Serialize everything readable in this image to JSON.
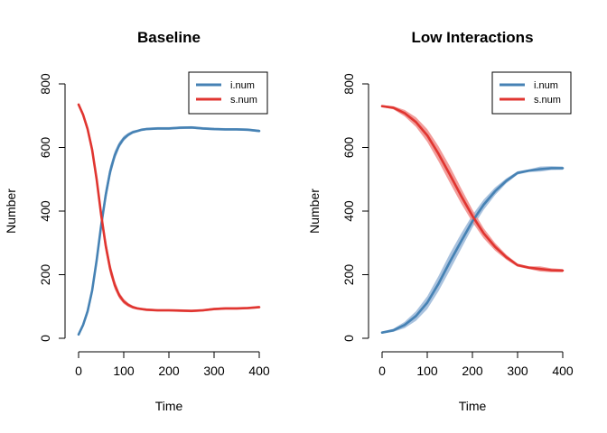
{
  "chart_data": [
    {
      "type": "line",
      "title": "Baseline",
      "xlabel": "Time",
      "ylabel": "Number",
      "xlim": [
        0,
        400
      ],
      "ylim": [
        0,
        800
      ],
      "xticks": [
        "0",
        "100",
        "200",
        "300",
        "400"
      ],
      "yticks": [
        "0",
        "200",
        "400",
        "600",
        "800"
      ],
      "grid": false,
      "legend_position": "top-right",
      "legend": [
        "i.num",
        "s.num"
      ],
      "series": [
        {
          "name": "i.num",
          "color": "#4682b4",
          "band_color": "#9ab7d8",
          "x": [
            0,
            10,
            20,
            30,
            40,
            50,
            60,
            70,
            80,
            90,
            100,
            110,
            120,
            130,
            140,
            150,
            175,
            200,
            225,
            250,
            275,
            300,
            325,
            350,
            375,
            400
          ],
          "y": [
            12,
            42,
            85,
            150,
            245,
            355,
            450,
            525,
            575,
            608,
            628,
            640,
            648,
            652,
            656,
            658,
            660,
            660,
            662,
            663,
            660,
            658,
            657,
            657,
            656,
            652
          ],
          "band": [
            4,
            8,
            12,
            16,
            20,
            22,
            22,
            18,
            14,
            10,
            8,
            6,
            5,
            4,
            4,
            4,
            4,
            4,
            4,
            4,
            4,
            4,
            4,
            4,
            4,
            4
          ]
        },
        {
          "name": "s.num",
          "color": "#e03530",
          "band_color": "#f08c8a",
          "x": [
            0,
            10,
            20,
            30,
            40,
            50,
            60,
            70,
            80,
            90,
            100,
            110,
            120,
            130,
            140,
            150,
            175,
            200,
            225,
            250,
            275,
            300,
            325,
            350,
            375,
            400
          ],
          "y": [
            735,
            703,
            658,
            593,
            500,
            388,
            292,
            218,
            168,
            135,
            116,
            105,
            98,
            94,
            92,
            90,
            88,
            88,
            87,
            86,
            88,
            92,
            94,
            94,
            95,
            98
          ],
          "band": [
            4,
            8,
            12,
            16,
            20,
            22,
            22,
            18,
            14,
            10,
            8,
            6,
            5,
            4,
            4,
            4,
            4,
            4,
            4,
            4,
            4,
            4,
            4,
            4,
            4,
            4
          ]
        }
      ]
    },
    {
      "type": "line",
      "title": "Low Interactions",
      "xlabel": "Time",
      "ylabel": "Number",
      "xlim": [
        0,
        400
      ],
      "ylim": [
        0,
        800
      ],
      "xticks": [
        "0",
        "100",
        "200",
        "300",
        "400"
      ],
      "yticks": [
        "0",
        "200",
        "400",
        "600",
        "800"
      ],
      "grid": false,
      "legend_position": "top-right",
      "legend": [
        "i.num",
        "s.num"
      ],
      "series": [
        {
          "name": "i.num",
          "color": "#4682b4",
          "band_color": "#9ab7d8",
          "x": [
            0,
            25,
            50,
            75,
            100,
            125,
            150,
            175,
            200,
            225,
            250,
            275,
            300,
            325,
            350,
            375,
            400
          ],
          "y": [
            18,
            25,
            42,
            70,
            112,
            172,
            240,
            305,
            368,
            420,
            462,
            495,
            520,
            527,
            532,
            535,
            535
          ],
          "band": [
            3,
            5,
            10,
            15,
            20,
            24,
            26,
            24,
            20,
            16,
            12,
            8,
            5,
            4,
            8,
            6,
            5
          ]
        },
        {
          "name": "s.num",
          "color": "#e03530",
          "band_color": "#f08c8a",
          "x": [
            0,
            25,
            50,
            75,
            100,
            125,
            150,
            175,
            200,
            225,
            250,
            275,
            300,
            325,
            350,
            375,
            400
          ],
          "y": [
            730,
            725,
            708,
            680,
            638,
            580,
            515,
            448,
            385,
            330,
            288,
            255,
            230,
            222,
            218,
            214,
            213
          ],
          "band": [
            3,
            5,
            10,
            15,
            20,
            24,
            26,
            24,
            20,
            16,
            12,
            8,
            5,
            4,
            8,
            6,
            5
          ]
        }
      ]
    }
  ]
}
